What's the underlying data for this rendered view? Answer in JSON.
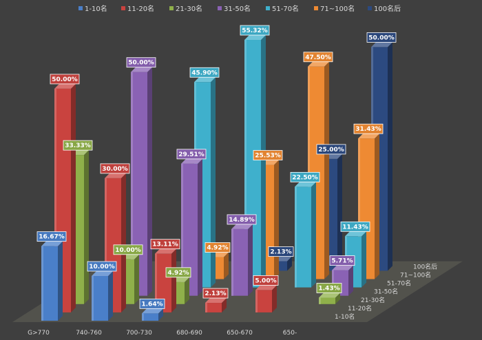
{
  "chart_data": {
    "type": "bar",
    "categories": [
      "G>770",
      "740-760",
      "700-730",
      "680-690",
      "650-670",
      "650-"
    ],
    "series": [
      {
        "name": "1-10名",
        "color": "#4a7fc9",
        "values": [
          16.67,
          10.0,
          1.64,
          null,
          null,
          null
        ]
      },
      {
        "name": "11-20名",
        "color": "#c9433f",
        "values": [
          50.0,
          30.0,
          13.11,
          2.13,
          5.0,
          null
        ]
      },
      {
        "name": "21-30名",
        "color": "#8fb04a",
        "values": [
          33.33,
          10.0,
          4.92,
          null,
          null,
          1.43
        ]
      },
      {
        "name": "31-50名",
        "color": "#8a62b4",
        "values": [
          null,
          50.0,
          29.51,
          14.89,
          null,
          5.71
        ]
      },
      {
        "name": "51-70名",
        "color": "#3fb0cc",
        "values": [
          null,
          null,
          45.9,
          55.32,
          22.5,
          11.43
        ]
      },
      {
        "name": "71~100名",
        "color": "#ee8a33",
        "values": [
          null,
          null,
          4.92,
          25.53,
          47.5,
          31.43
        ]
      },
      {
        "name": "100名后",
        "color": "#2c4a80",
        "values": [
          null,
          null,
          null,
          2.13,
          25.0,
          50.0
        ]
      }
    ],
    "labels": [
      [
        "16.67%",
        "10.00%",
        "1.64%",
        "",
        "",
        ""
      ],
      [
        "50.00%",
        "30.00%",
        "13.11%",
        "2.13%",
        "5.00%",
        ""
      ],
      [
        "33.33%",
        "10.00%",
        "4.92%",
        "",
        "",
        "1.43%"
      ],
      [
        "",
        "50.00%",
        "29.51%",
        "14.89%",
        "",
        "5.71%"
      ],
      [
        "",
        "",
        "45.90%",
        "55.32%",
        "22.50%",
        "11.43%"
      ],
      [
        "",
        "",
        "4.92%",
        "25.53%",
        "47.50%",
        "31.43%"
      ],
      [
        "",
        "",
        "",
        "2.13%",
        "25.00%",
        "50.00%"
      ]
    ],
    "depth_labels": [
      "1-10名",
      "11-20名",
      "21-30名",
      "31-50名",
      "51-70名",
      "71~100名",
      "100名后"
    ],
    "ylim": [
      0,
      60
    ],
    "legend_position": "top",
    "grid": false
  }
}
